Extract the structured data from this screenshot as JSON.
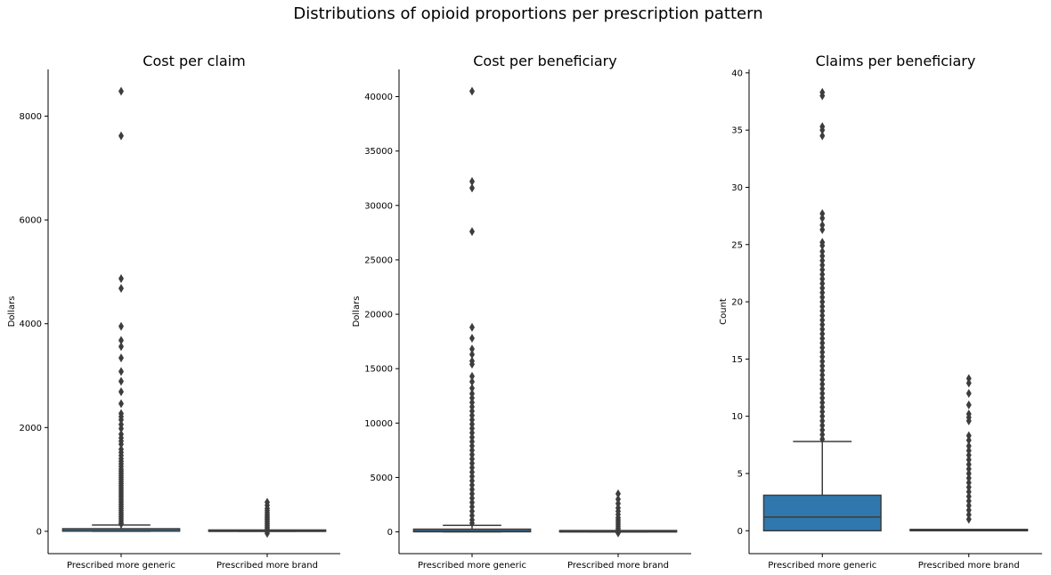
{
  "figure": {
    "suptitle": "Distributions of opioid proportions per prescription pattern"
  },
  "colors": {
    "box_fill_primary": "#2f77ad",
    "box_fill_secondary": "#f2883a",
    "edge": "#3d3d3d",
    "axis": "#000000"
  },
  "chart_data": [
    {
      "type": "box",
      "title": "Cost per claim",
      "xlabel": "",
      "ylabel": "Dollars",
      "categories": [
        "Prescribed more generic",
        "Prescribed more brand"
      ],
      "ylim": [
        -430,
        8900
      ],
      "yticks": [
        0,
        2000,
        4000,
        6000,
        8000
      ],
      "ytick_labels": [
        "0",
        "2000",
        "4000",
        "6000",
        "8000"
      ],
      "grid": false,
      "boxes": [
        {
          "category": "Prescribed more generic",
          "q1": 3,
          "median": 10,
          "q3": 50,
          "whisker_low": 0,
          "whisker_high": 120,
          "fliers": [
            8480,
            7620,
            4870,
            4680,
            3950,
            3680,
            3560,
            3340,
            3080,
            2890,
            2690,
            2460,
            2270,
            2210,
            2150,
            2060,
            1980,
            1870,
            1800,
            1740,
            1680,
            1580,
            1520,
            1460,
            1400,
            1350,
            1300,
            1250,
            1200,
            1160,
            1120,
            1080,
            1040,
            1000,
            960,
            920,
            880,
            840,
            800,
            760,
            720,
            680,
            640,
            600,
            560,
            520,
            480,
            440,
            400,
            360,
            320,
            280,
            240,
            200,
            160,
            140
          ]
        },
        {
          "category": "Prescribed more brand",
          "q1": 0,
          "median": 0,
          "q3": 2,
          "whisker_low": 0,
          "whisker_high": 5,
          "fliers": [
            560,
            500,
            440,
            400,
            360,
            320,
            290,
            260,
            230,
            200,
            170,
            140,
            110,
            80,
            50,
            20,
            -10,
            -40
          ]
        }
      ]
    },
    {
      "type": "box",
      "title": "Cost per beneficiary",
      "xlabel": "",
      "ylabel": "Dollars",
      "categories": [
        "Prescribed more generic",
        "Prescribed more brand"
      ],
      "ylim": [
        -2000,
        42500
      ],
      "yticks": [
        0,
        5000,
        10000,
        15000,
        20000,
        25000,
        30000,
        35000,
        40000
      ],
      "ytick_labels": [
        "0",
        "5000",
        "10000",
        "15000",
        "20000",
        "25000",
        "30000",
        "35000",
        "40000"
      ],
      "grid": false,
      "boxes": [
        {
          "category": "Prescribed more generic",
          "q1": 10,
          "median": 60,
          "q3": 250,
          "whisker_low": 0,
          "whisker_high": 600,
          "fliers": [
            40500,
            32200,
            31600,
            27600,
            18800,
            17800,
            16800,
            16300,
            15700,
            15400,
            14300,
            13800,
            13200,
            12700,
            12300,
            11900,
            11500,
            11100,
            10700,
            10300,
            9900,
            9500,
            9100,
            8700,
            8300,
            7900,
            7500,
            7100,
            6700,
            6300,
            5900,
            5500,
            5100,
            4700,
            4300,
            3900,
            3500,
            3100,
            2700,
            2300,
            1900,
            1500,
            1100,
            800
          ]
        },
        {
          "category": "Prescribed more brand",
          "q1": 0,
          "median": 0,
          "q3": 10,
          "whisker_low": 0,
          "whisker_high": 20,
          "fliers": [
            3500,
            3000,
            2600,
            2200,
            1900,
            1600,
            1300,
            1100,
            900,
            700,
            500,
            300,
            150,
            50,
            -100
          ]
        }
      ]
    },
    {
      "type": "box",
      "title": "Claims per beneficiary",
      "xlabel": "",
      "ylabel": "Count",
      "categories": [
        "Prescribed more generic",
        "Prescribed more brand"
      ],
      "ylim": [
        -2,
        40.3
      ],
      "yticks": [
        0,
        5,
        10,
        15,
        20,
        25,
        30,
        35,
        40
      ],
      "ytick_labels": [
        "0",
        "5",
        "10",
        "15",
        "20",
        "25",
        "30",
        "35",
        "40"
      ],
      "grid": false,
      "boxes": [
        {
          "category": "Prescribed more generic",
          "q1": 0,
          "median": 1.2,
          "q3": 3.1,
          "whisker_low": 0,
          "whisker_high": 7.8,
          "filled": true,
          "fliers": [
            38.3,
            38.0,
            35.3,
            35.0,
            34.5,
            27.7,
            27.3,
            26.7,
            26.3,
            25.2,
            24.9,
            24.4,
            24.0,
            23.6,
            23.2,
            22.8,
            22.4,
            22.0,
            21.6,
            21.2,
            20.8,
            20.4,
            20.0,
            19.6,
            19.2,
            18.8,
            18.4,
            18.0,
            17.6,
            17.2,
            16.8,
            16.4,
            16.0,
            15.6,
            15.2,
            14.8,
            14.4,
            14.0,
            13.6,
            13.2,
            12.8,
            12.4,
            12.0,
            11.6,
            11.2,
            10.8,
            10.4,
            10.0,
            9.6,
            9.2,
            8.8,
            8.4,
            8.0
          ]
        },
        {
          "category": "Prescribed more brand",
          "q1": 0,
          "median": 0,
          "q3": 0,
          "whisker_low": 0,
          "whisker_high": 0,
          "fliers": [
            13.3,
            12.9,
            12.0,
            11.0,
            10.2,
            9.9,
            9.6,
            8.3,
            7.9,
            7.4,
            7.0,
            6.6,
            6.2,
            5.8,
            5.4,
            5.0,
            4.6,
            4.2,
            3.8,
            3.4,
            3.0,
            2.6,
            2.2,
            1.8,
            1.4,
            1.0
          ]
        }
      ]
    }
  ]
}
